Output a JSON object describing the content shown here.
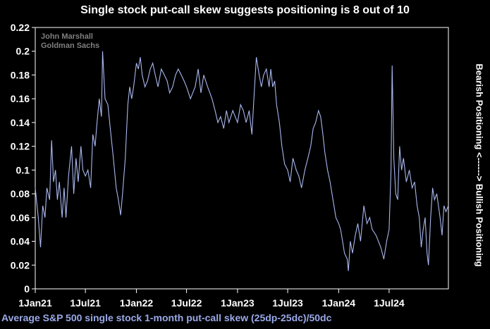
{
  "chart_data": {
    "type": "line",
    "title": "Single stock put-call skew suggests positioning is 8 out of 10",
    "author": [
      "John Marshall",
      "Goldman Sachs"
    ],
    "xlabel": "Average S&P 500 single stock 1-month put-call skew (25dp-25dc)/50dc",
    "ylabel_right": "Bearish Positioning <------> Bullish Positioning",
    "ylim": [
      0,
      0.22
    ],
    "yticks": [
      "0",
      "0.02",
      "0.04",
      "0.06",
      "0.08",
      "0.1",
      "0.12",
      "0.14",
      "0.16",
      "0.18",
      "0.2",
      "0.22"
    ],
    "xlim": [
      "2021-01-01",
      "2025-01-31"
    ],
    "xticks": [
      {
        "date": "2021-01-01",
        "label": "1Jan21"
      },
      {
        "date": "2021-07-01",
        "label": "1Jul21"
      },
      {
        "date": "2022-01-01",
        "label": "1Jan22"
      },
      {
        "date": "2022-07-01",
        "label": "1Jul22"
      },
      {
        "date": "2023-01-01",
        "label": "1Jan23"
      },
      {
        "date": "2023-07-01",
        "label": "1Jul23"
      },
      {
        "date": "2024-01-01",
        "label": "1Jan24"
      },
      {
        "date": "2024-07-01",
        "label": "1Jul24"
      }
    ],
    "grid": false,
    "line_color": "#a9b7ee",
    "series": [
      {
        "points": [
          [
            "2021-01-01",
            0.085
          ],
          [
            "2021-01-12",
            0.06
          ],
          [
            "2021-01-20",
            0.035
          ],
          [
            "2021-01-28",
            0.07
          ],
          [
            "2021-02-05",
            0.06
          ],
          [
            "2021-02-12",
            0.085
          ],
          [
            "2021-02-22",
            0.075
          ],
          [
            "2021-03-01",
            0.125
          ],
          [
            "2021-03-08",
            0.09
          ],
          [
            "2021-03-15",
            0.1
          ],
          [
            "2021-03-22",
            0.075
          ],
          [
            "2021-03-29",
            0.09
          ],
          [
            "2021-04-08",
            0.06
          ],
          [
            "2021-04-15",
            0.085
          ],
          [
            "2021-04-22",
            0.06
          ],
          [
            "2021-05-01",
            0.095
          ],
          [
            "2021-05-12",
            0.12
          ],
          [
            "2021-05-20",
            0.08
          ],
          [
            "2021-05-28",
            0.11
          ],
          [
            "2021-06-05",
            0.09
          ],
          [
            "2021-06-15",
            0.12
          ],
          [
            "2021-06-22",
            0.1
          ],
          [
            "2021-07-01",
            0.095
          ],
          [
            "2021-07-10",
            0.1
          ],
          [
            "2021-07-20",
            0.085
          ],
          [
            "2021-07-28",
            0.13
          ],
          [
            "2021-08-05",
            0.12
          ],
          [
            "2021-08-12",
            0.14
          ],
          [
            "2021-08-20",
            0.16
          ],
          [
            "2021-08-28",
            0.145
          ],
          [
            "2021-09-01",
            0.2
          ],
          [
            "2021-09-10",
            0.16
          ],
          [
            "2021-09-20",
            0.155
          ],
          [
            "2021-10-01",
            0.13
          ],
          [
            "2021-10-10",
            0.11
          ],
          [
            "2021-10-20",
            0.085
          ],
          [
            "2021-10-28",
            0.075
          ],
          [
            "2021-11-05",
            0.062
          ],
          [
            "2021-11-12",
            0.08
          ],
          [
            "2021-11-22",
            0.11
          ],
          [
            "2021-12-01",
            0.155
          ],
          [
            "2021-12-08",
            0.17
          ],
          [
            "2021-12-15",
            0.16
          ],
          [
            "2021-12-22",
            0.17
          ],
          [
            "2022-01-01",
            0.19
          ],
          [
            "2022-01-08",
            0.185
          ],
          [
            "2022-01-15",
            0.195
          ],
          [
            "2022-01-22",
            0.18
          ],
          [
            "2022-02-01",
            0.17
          ],
          [
            "2022-02-10",
            0.175
          ],
          [
            "2022-02-20",
            0.185
          ],
          [
            "2022-03-01",
            0.19
          ],
          [
            "2022-03-10",
            0.18
          ],
          [
            "2022-03-20",
            0.17
          ],
          [
            "2022-04-01",
            0.185
          ],
          [
            "2022-04-12",
            0.18
          ],
          [
            "2022-04-22",
            0.175
          ],
          [
            "2022-05-01",
            0.165
          ],
          [
            "2022-05-12",
            0.17
          ],
          [
            "2022-05-22",
            0.18
          ],
          [
            "2022-06-01",
            0.185
          ],
          [
            "2022-06-12",
            0.18
          ],
          [
            "2022-06-22",
            0.175
          ],
          [
            "2022-07-01",
            0.17
          ],
          [
            "2022-07-15",
            0.16
          ],
          [
            "2022-08-01",
            0.17
          ],
          [
            "2022-08-12",
            0.185
          ],
          [
            "2022-08-22",
            0.165
          ],
          [
            "2022-09-01",
            0.18
          ],
          [
            "2022-09-15",
            0.17
          ],
          [
            "2022-10-01",
            0.16
          ],
          [
            "2022-10-12",
            0.15
          ],
          [
            "2022-10-22",
            0.14
          ],
          [
            "2022-11-01",
            0.145
          ],
          [
            "2022-11-12",
            0.135
          ],
          [
            "2022-11-22",
            0.15
          ],
          [
            "2022-12-01",
            0.14
          ],
          [
            "2022-12-15",
            0.15
          ],
          [
            "2023-01-01",
            0.14
          ],
          [
            "2023-01-12",
            0.155
          ],
          [
            "2023-01-22",
            0.15
          ],
          [
            "2023-02-01",
            0.14
          ],
          [
            "2023-02-12",
            0.15
          ],
          [
            "2023-02-22",
            0.13
          ],
          [
            "2023-03-01",
            0.16
          ],
          [
            "2023-03-10",
            0.195
          ],
          [
            "2023-03-20",
            0.18
          ],
          [
            "2023-03-28",
            0.17
          ],
          [
            "2023-04-05",
            0.18
          ],
          [
            "2023-04-15",
            0.185
          ],
          [
            "2023-04-25",
            0.17
          ],
          [
            "2023-05-01",
            0.185
          ],
          [
            "2023-05-08",
            0.17
          ],
          [
            "2023-05-15",
            0.175
          ],
          [
            "2023-05-22",
            0.155
          ],
          [
            "2023-06-01",
            0.14
          ],
          [
            "2023-06-10",
            0.12
          ],
          [
            "2023-06-20",
            0.105
          ],
          [
            "2023-07-01",
            0.1
          ],
          [
            "2023-07-10",
            0.09
          ],
          [
            "2023-07-20",
            0.11
          ],
          [
            "2023-08-01",
            0.1
          ],
          [
            "2023-08-10",
            0.095
          ],
          [
            "2023-08-20",
            0.085
          ],
          [
            "2023-09-01",
            0.1
          ],
          [
            "2023-09-12",
            0.11
          ],
          [
            "2023-09-22",
            0.12
          ],
          [
            "2023-10-01",
            0.135
          ],
          [
            "2023-10-10",
            0.14
          ],
          [
            "2023-10-20",
            0.15
          ],
          [
            "2023-10-28",
            0.145
          ],
          [
            "2023-11-05",
            0.13
          ],
          [
            "2023-11-12",
            0.115
          ],
          [
            "2023-11-22",
            0.1
          ],
          [
            "2023-12-01",
            0.09
          ],
          [
            "2023-12-08",
            0.08
          ],
          [
            "2023-12-15",
            0.07
          ],
          [
            "2023-12-22",
            0.06
          ],
          [
            "2024-01-01",
            0.055
          ],
          [
            "2024-01-08",
            0.05
          ],
          [
            "2024-01-15",
            0.04
          ],
          [
            "2024-01-22",
            0.03
          ],
          [
            "2024-02-01",
            0.025
          ],
          [
            "2024-02-05",
            0.015
          ],
          [
            "2024-02-12",
            0.04
          ],
          [
            "2024-02-20",
            0.03
          ],
          [
            "2024-03-01",
            0.045
          ],
          [
            "2024-03-10",
            0.055
          ],
          [
            "2024-03-20",
            0.04
          ],
          [
            "2024-04-01",
            0.07
          ],
          [
            "2024-04-12",
            0.055
          ],
          [
            "2024-04-22",
            0.06
          ],
          [
            "2024-05-01",
            0.05
          ],
          [
            "2024-05-15",
            0.045
          ],
          [
            "2024-06-01",
            0.035
          ],
          [
            "2024-06-12",
            0.025
          ],
          [
            "2024-06-22",
            0.04
          ],
          [
            "2024-07-01",
            0.05
          ],
          [
            "2024-07-08",
            0.1
          ],
          [
            "2024-07-12",
            0.188
          ],
          [
            "2024-07-18",
            0.11
          ],
          [
            "2024-07-25",
            0.08
          ],
          [
            "2024-08-01",
            0.075
          ],
          [
            "2024-08-08",
            0.12
          ],
          [
            "2024-08-15",
            0.1
          ],
          [
            "2024-08-22",
            0.11
          ],
          [
            "2024-09-01",
            0.09
          ],
          [
            "2024-09-12",
            0.1
          ],
          [
            "2024-09-22",
            0.085
          ],
          [
            "2024-10-01",
            0.09
          ],
          [
            "2024-10-10",
            0.07
          ],
          [
            "2024-10-18",
            0.06
          ],
          [
            "2024-10-25",
            0.035
          ],
          [
            "2024-11-01",
            0.05
          ],
          [
            "2024-11-08",
            0.06
          ],
          [
            "2024-11-15",
            0.03
          ],
          [
            "2024-11-20",
            0.02
          ],
          [
            "2024-11-28",
            0.06
          ],
          [
            "2024-12-05",
            0.085
          ],
          [
            "2024-12-12",
            0.075
          ],
          [
            "2024-12-20",
            0.08
          ],
          [
            "2025-01-01",
            0.06
          ],
          [
            "2025-01-08",
            0.045
          ],
          [
            "2025-01-15",
            0.07
          ],
          [
            "2025-01-22",
            0.065
          ],
          [
            "2025-01-31",
            0.07
          ]
        ]
      }
    ]
  }
}
